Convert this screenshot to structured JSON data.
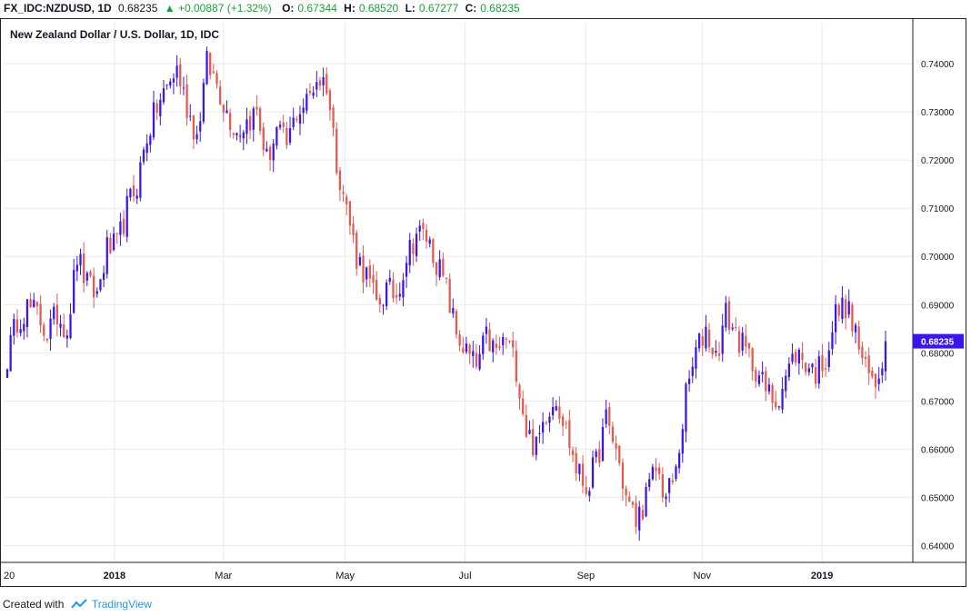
{
  "header": {
    "symbol": "FX_IDC:NZDUSD, 1D",
    "last": "0.68235",
    "change": "+0.00887 (+1.32%)",
    "open_label": "O:",
    "open": "0.67344",
    "high_label": "H:",
    "high": "0.68520",
    "low_label": "L:",
    "low": "0.67277",
    "close_label": "C:",
    "close": "0.68235"
  },
  "footer": {
    "text": "Created with",
    "brand": "TradingView"
  },
  "colors": {
    "up": "#3b16ea",
    "down": "#e5594f",
    "grid": "#e6eaf0",
    "badge": "#3b16ea"
  },
  "chart_data": {
    "type": "candlestick",
    "title": "New Zealand Dollar / U.S. Dollar, 1D, IDC",
    "ylim": [
      0.6365,
      0.7485
    ],
    "y_ticks": [
      "0.74000",
      "0.73000",
      "0.72000",
      "0.71000",
      "0.70000",
      "0.69000",
      "0.68000",
      "0.67000",
      "0.66000",
      "0.65000",
      "0.64000"
    ],
    "x_ticks": [
      {
        "label": "20",
        "pos": 0
      },
      {
        "label": "2018",
        "pos": 0.122,
        "bold": true
      },
      {
        "label": "Mar",
        "pos": 0.242
      },
      {
        "label": "May",
        "pos": 0.376
      },
      {
        "label": "Jul",
        "pos": 0.508
      },
      {
        "label": "Sep",
        "pos": 0.641
      },
      {
        "label": "Nov",
        "pos": 0.769
      },
      {
        "label": "2019",
        "pos": 0.901,
        "bold": true
      }
    ],
    "last_price_label": "0.68235",
    "series": [
      {
        "values": [
          0.679,
          0.687,
          0.6895,
          0.688,
          0.684,
          0.688,
          0.685,
          0.7,
          0.694,
          0.692,
          0.7015,
          0.702,
          0.71,
          0.715,
          0.725,
          0.731,
          0.735,
          0.739,
          0.731,
          0.725,
          0.74,
          0.736,
          0.73,
          0.726,
          0.728,
          0.73,
          0.72,
          0.726,
          0.723,
          0.73,
          0.732,
          0.737,
          0.736,
          0.72,
          0.71,
          0.7,
          0.696,
          0.69,
          0.693,
          0.692,
          0.7,
          0.705,
          0.704,
          0.699,
          0.693,
          0.684,
          0.68,
          0.677,
          0.683,
          0.68,
          0.683,
          0.677,
          0.664,
          0.66,
          0.668,
          0.671,
          0.664,
          0.656,
          0.652,
          0.657,
          0.666,
          0.66,
          0.65,
          0.645,
          0.65,
          0.656,
          0.65,
          0.655,
          0.671,
          0.68,
          0.685,
          0.679,
          0.688,
          0.684,
          0.68,
          0.677,
          0.672,
          0.67,
          0.675,
          0.68,
          0.678,
          0.676,
          0.679,
          0.688,
          0.69,
          0.684,
          0.676,
          0.6735,
          0.6824
        ]
      }
    ]
  }
}
